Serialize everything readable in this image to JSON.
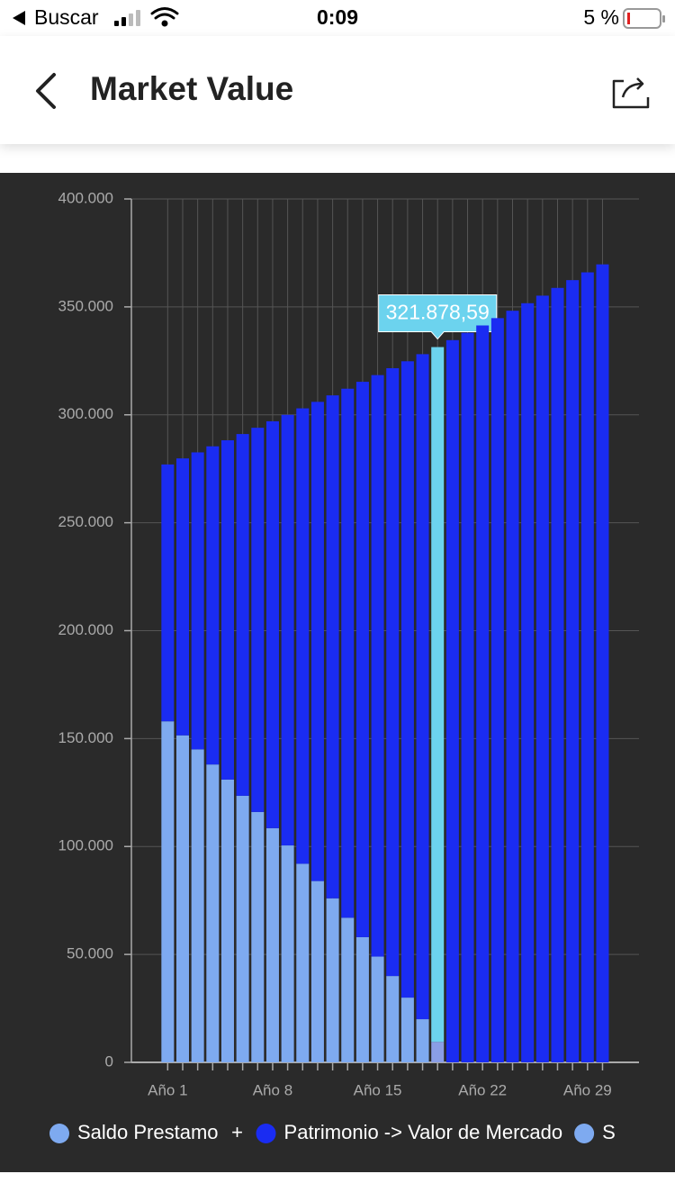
{
  "status_bar": {
    "back_app": "Buscar",
    "time": "0:09",
    "battery": "5 %"
  },
  "header": {
    "title": "Market Value"
  },
  "chart_data": {
    "type": "bar",
    "stacked": true,
    "categories": [
      "Año 1",
      null,
      null,
      null,
      null,
      null,
      null,
      "Año 8",
      null,
      null,
      null,
      null,
      null,
      null,
      "Año 15",
      null,
      null,
      null,
      null,
      null,
      null,
      "Año 22",
      null,
      null,
      null,
      null,
      null,
      null,
      "Año 29",
      null
    ],
    "series": [
      {
        "name": "Saldo Prestamo",
        "color": "#7eaaf0",
        "highlight_color": "#8a9ee6",
        "values": [
          158000,
          151500,
          145000,
          138000,
          131000,
          123500,
          116000,
          108500,
          100500,
          92000,
          84000,
          76000,
          67000,
          58000,
          49000,
          40000,
          30000,
          20000,
          9500,
          0,
          0,
          0,
          0,
          0,
          0,
          0,
          0,
          0,
          0,
          0
        ]
      },
      {
        "name": "Patrimonio -> Valor de Mercado",
        "color": "#1a2cf2",
        "highlight_color": "#6cd3ee",
        "values": [
          119000,
          128300,
          137600,
          147400,
          157200,
          167600,
          178000,
          188500,
          199500,
          211000,
          222000,
          233000,
          245100,
          257300,
          269400,
          281600,
          294800,
          308100,
          321878.59,
          334600,
          338000,
          341400,
          344800,
          348200,
          351700,
          355200,
          358800,
          362400,
          366000,
          369700
        ],
        "value_labels": [
          null,
          null,
          null,
          null,
          null,
          null,
          null,
          null,
          null,
          null,
          null,
          null,
          null,
          null,
          null,
          null,
          null,
          null,
          "321.878,59",
          null,
          null,
          null,
          null,
          null,
          null,
          null,
          null,
          null,
          null,
          null
        ]
      }
    ],
    "legend_separator": "+",
    "legend_clipped_text": "S",
    "ylim": [
      0,
      400000
    ],
    "yticks": [
      0,
      {
        "value": 50000,
        "label": "50.000"
      },
      {
        "value": 100000,
        "label": "100.000"
      },
      {
        "value": 150000,
        "label": "150.000"
      },
      {
        "value": 200000,
        "label": "200.000"
      },
      {
        "value": 250000,
        "label": "250.000"
      },
      {
        "value": 300000,
        "label": "300.000"
      },
      {
        "value": 350000,
        "label": "350.000"
      },
      {
        "value": 400000,
        "label": "400.000"
      }
    ],
    "grid": true
  }
}
